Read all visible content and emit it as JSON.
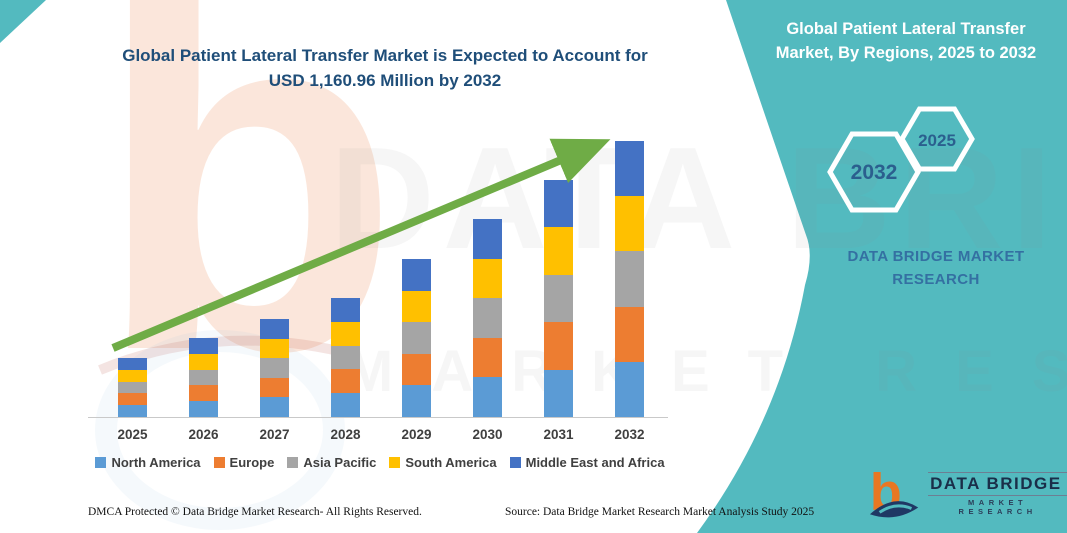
{
  "header": {
    "chart_title_line1": "Global Patient Lateral Transfer Market is Expected to Account for",
    "chart_title_line2": "USD 1,160.96 Million by 2032",
    "panel_title_line1": "Global Patient Lateral Transfer",
    "panel_title_line2": "Market, By Regions, 2025 to 2032"
  },
  "side_panel": {
    "panel_color": "#53BABF",
    "hexagon_large_label": "2032",
    "hexagon_small_label": "2025",
    "hexagon_text_color": "#2B5F8E",
    "brand_line1": "DATA BRIDGE MARKET",
    "brand_line2": "RESEARCH",
    "brand_text_color": "#3470A2"
  },
  "chart_data": {
    "type": "bar",
    "stacked": true,
    "unit": "USD Million",
    "title": "Global Patient Lateral Transfer Market is Expected to Account for USD 1,160.96 Million by 2032",
    "categories": [
      "2025",
      "2026",
      "2027",
      "2028",
      "2029",
      "2030",
      "2031",
      "2032"
    ],
    "series": [
      {
        "name": "North America",
        "color": "#5B9BD5",
        "values": [
          49.6,
          66.5,
          82.4,
          100.1,
          132.9,
          166.6,
          199.4,
          232.2
        ]
      },
      {
        "name": "Europe",
        "color": "#ED7D31",
        "values": [
          49.6,
          66.5,
          82.4,
          100.1,
          132.9,
          166.6,
          199.4,
          232.2
        ]
      },
      {
        "name": "Asia Pacific",
        "color": "#A5A5A5",
        "values": [
          49.6,
          66.5,
          82.4,
          100.1,
          132.9,
          166.6,
          199.4,
          232.2
        ]
      },
      {
        "name": "South America",
        "color": "#FFC000",
        "values": [
          49.6,
          66.5,
          82.4,
          100.1,
          132.9,
          166.6,
          199.4,
          232.2
        ]
      },
      {
        "name": "Middle East and Africa",
        "color": "#4472C4",
        "values": [
          49.6,
          66.5,
          82.4,
          100.1,
          132.9,
          166.6,
          199.4,
          232.2
        ]
      }
    ],
    "totals": [
      248.2,
      332.3,
      412.2,
      500.6,
      664.6,
      832.9,
      996.9,
      1160.96
    ],
    "ylim": [
      0,
      1200
    ],
    "grid": false,
    "axes_labels_visible": false,
    "legend_position": "bottom",
    "trend_arrow": true,
    "trend_arrow_color": "#6FAC46"
  },
  "watermark": {
    "logo_glyph": "b",
    "text_line1": "DATA BRIDGE",
    "text_line2": "MARKET RESEARCH"
  },
  "footer": {
    "left_text": "DMCA Protected © Data Bridge Market Research-  All Rights Reserved.",
    "source_text": "Source: Data Bridge Market Research  Market Analysis Study 2025"
  },
  "logo": {
    "glyph": "b",
    "name": "DATA BRIDGE",
    "sub": "MARKET RESEARCH"
  }
}
